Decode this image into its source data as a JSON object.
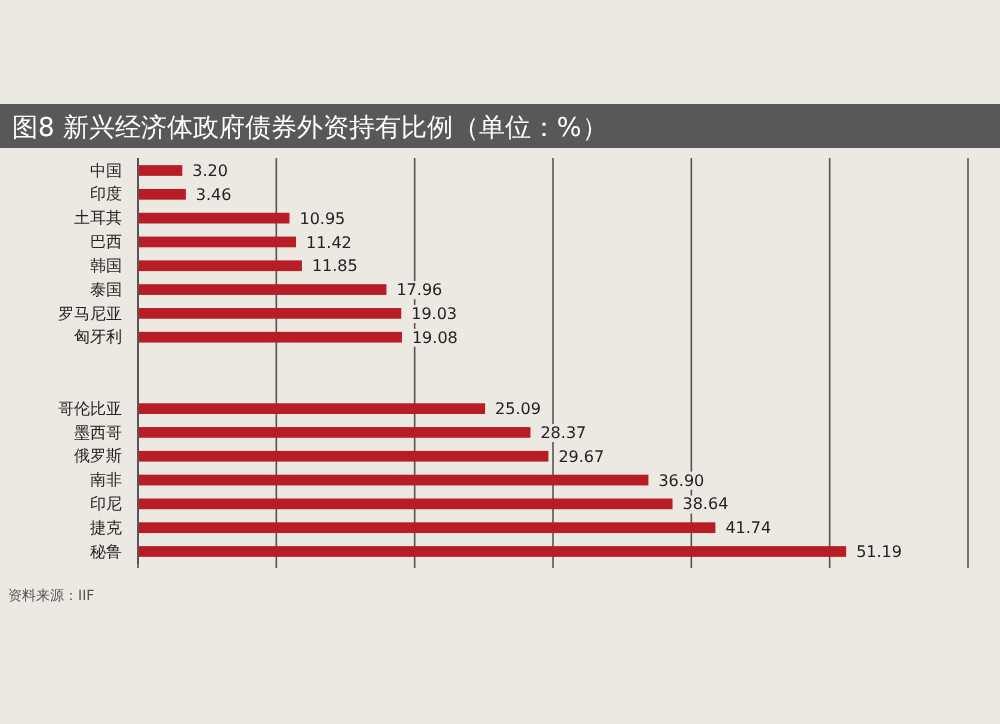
{
  "chart_data": {
    "type": "bar",
    "orientation": "horizontal",
    "title": "图8  新兴经济体政府债券外资持有比例（单位：%）",
    "categories": [
      "中国",
      "印度",
      "土耳其",
      "巴西",
      "韩国",
      "泰国",
      "罗马尼亚",
      "匈牙利",
      null,
      null,
      "哥伦比亚",
      "墨西哥",
      "俄罗斯",
      "南非",
      "印尼",
      "捷克",
      "秘鲁"
    ],
    "values": [
      3.2,
      3.46,
      10.95,
      11.42,
      11.85,
      17.96,
      19.03,
      19.08,
      null,
      null,
      25.09,
      28.37,
      29.67,
      36.9,
      38.64,
      41.74,
      51.19
    ],
    "value_labels": [
      "3.20",
      "3.46",
      "10.95",
      "11.42",
      "11.85",
      "17.96",
      "19.03",
      "19.08",
      null,
      null,
      "25.09",
      "28.37",
      "29.67",
      "36.90",
      "38.64",
      "41.74",
      "51.19"
    ],
    "color": "#b81c24",
    "xlim": [
      0,
      60
    ],
    "xticks": [
      {
        "value": 0,
        "label": null
      },
      {
        "value": 10,
        "label": null
      },
      {
        "value": 20,
        "label": null
      },
      {
        "value": 30,
        "label": null
      },
      {
        "value": 40,
        "label": null
      },
      {
        "value": 50,
        "label": null
      },
      {
        "value": 60,
        "label": null
      }
    ],
    "grid": "x",
    "tick_labels": "y",
    "annotations": [
      "资料来源：IIF"
    ]
  }
}
